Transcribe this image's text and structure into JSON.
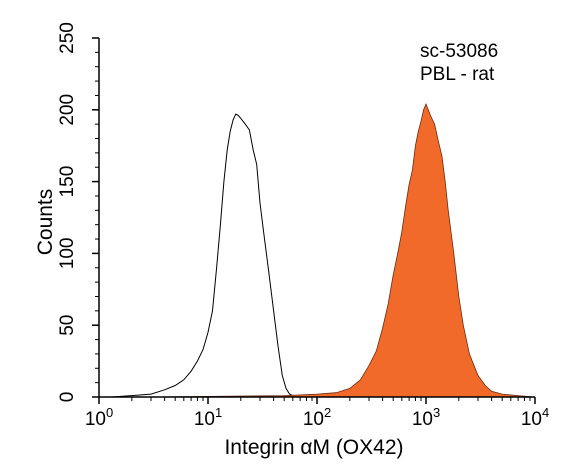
{
  "chart_data": {
    "type": "area",
    "xlabel": "Integrin αM (OX42)",
    "ylabel": "Counts",
    "xscale": "log",
    "xlim": [
      1,
      10000
    ],
    "ylim": [
      0,
      250
    ],
    "x_ticks": [
      {
        "base": "10",
        "exp": "0",
        "value": 1
      },
      {
        "base": "10",
        "exp": "1",
        "value": 10
      },
      {
        "base": "10",
        "exp": "2",
        "value": 100
      },
      {
        "base": "10",
        "exp": "3",
        "value": 1000
      },
      {
        "base": "10",
        "exp": "4",
        "value": 10000
      }
    ],
    "y_ticks": [
      "0",
      "50",
      "100",
      "150",
      "200",
      "250"
    ],
    "grid": false,
    "annotations": [
      "sc-53086",
      "PBL - rat"
    ],
    "series": [
      {
        "style": "outline",
        "color": "#000000",
        "x": [
          1.3,
          2,
          3,
          4,
          5,
          6,
          7,
          8,
          9,
          10,
          11,
          12,
          13,
          14,
          15,
          16,
          17,
          18,
          19,
          20,
          22,
          24,
          26,
          28,
          30,
          33,
          36,
          40,
          44,
          48,
          52,
          56,
          60,
          70,
          100,
          300,
          1000,
          10000
        ],
        "values": [
          0,
          1,
          2,
          5,
          8,
          12,
          18,
          25,
          33,
          45,
          60,
          90,
          120,
          150,
          172,
          185,
          193,
          197,
          196,
          194,
          190,
          186,
          172,
          162,
          135,
          110,
          88,
          60,
          35,
          15,
          6,
          2,
          1,
          0,
          0,
          0,
          0,
          0
        ]
      },
      {
        "style": "filled",
        "color": "#f26a2a",
        "x": [
          3,
          50,
          100,
          150,
          200,
          250,
          300,
          350,
          400,
          450,
          500,
          550,
          600,
          650,
          700,
          750,
          800,
          850,
          900,
          950,
          1000,
          1100,
          1200,
          1300,
          1400,
          1500,
          1600,
          1800,
          2000,
          2200,
          2500,
          3000,
          3500,
          4000,
          5000,
          7000,
          10000
        ],
        "values": [
          0,
          1,
          2,
          3,
          6,
          12,
          22,
          32,
          48,
          65,
          85,
          100,
          115,
          133,
          148,
          158,
          175,
          185,
          192,
          200,
          204,
          196,
          190,
          178,
          168,
          150,
          130,
          100,
          70,
          50,
          30,
          15,
          8,
          4,
          2,
          1,
          0
        ]
      }
    ]
  }
}
